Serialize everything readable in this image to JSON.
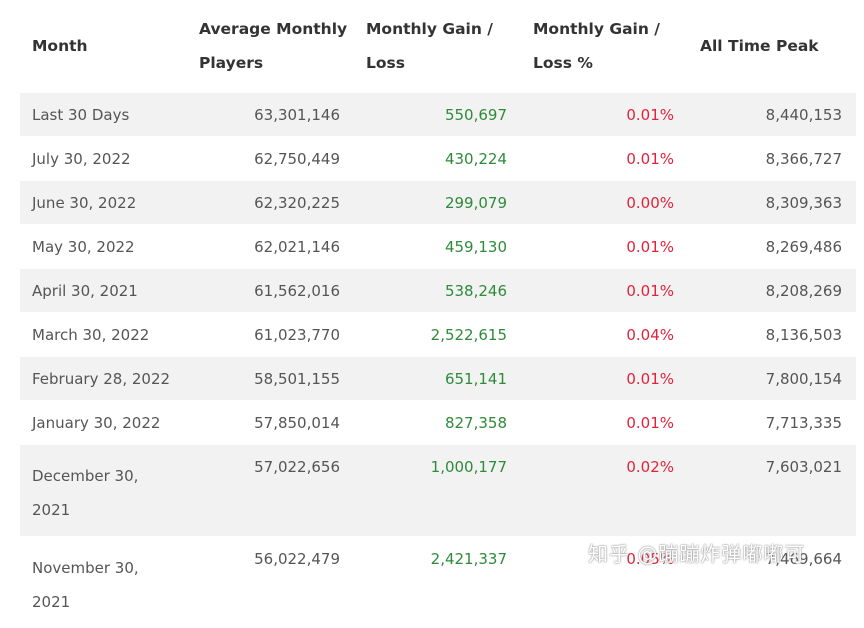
{
  "headers": {
    "month": "Month",
    "avg_players_l1": "Average Monthly",
    "avg_players_l2": "Players",
    "gain_l1": "Monthly Gain /",
    "gain_l2": "Loss",
    "gain_pct_l1": "Monthly Gain /",
    "gain_pct_l2": "Loss %",
    "peak": "All Time Peak"
  },
  "rows": [
    {
      "month": "Last 30 Days",
      "avg": "63,301,146",
      "gain": "550,697",
      "pct": "0.01%",
      "peak": "8,440,153"
    },
    {
      "month": "July 30, 2022",
      "avg": "62,750,449",
      "gain": "430,224",
      "pct": "0.01%",
      "peak": "8,366,727"
    },
    {
      "month": "June 30, 2022",
      "avg": "62,320,225",
      "gain": "299,079",
      "pct": "0.00%",
      "peak": "8,309,363"
    },
    {
      "month": "May 30, 2022",
      "avg": "62,021,146",
      "gain": "459,130",
      "pct": "0.01%",
      "peak": "8,269,486"
    },
    {
      "month": "April 30, 2021",
      "avg": "61,562,016",
      "gain": "538,246",
      "pct": "0.01%",
      "peak": "8,208,269"
    },
    {
      "month": "March 30, 2022",
      "avg": "61,023,770",
      "gain": "2,522,615",
      "pct": "0.04%",
      "peak": "8,136,503"
    },
    {
      "month": "February 28, 2022",
      "avg": "58,501,155",
      "gain": "651,141",
      "pct": "0.01%",
      "peak": "7,800,154"
    },
    {
      "month": "January 30, 2022",
      "avg": "57,850,014",
      "gain": "827,358",
      "pct": "0.01%",
      "peak": "7,713,335"
    },
    {
      "month": "December 30, 2021",
      "avg": "57,022,656",
      "gain": "1,000,177",
      "pct": "0.02%",
      "peak": "7,603,021"
    },
    {
      "month": "November 30, 2021",
      "avg": "56,022,479",
      "gain": "2,421,337",
      "pct": "0.05%",
      "peak": "7,469,664"
    }
  ],
  "watermark": "知乎 @蹦蹦炸弹嘟嘟可",
  "colors": {
    "gain": "#2e8b3a",
    "pct": "#e0233b",
    "row_alt": "#f2f2f2"
  }
}
